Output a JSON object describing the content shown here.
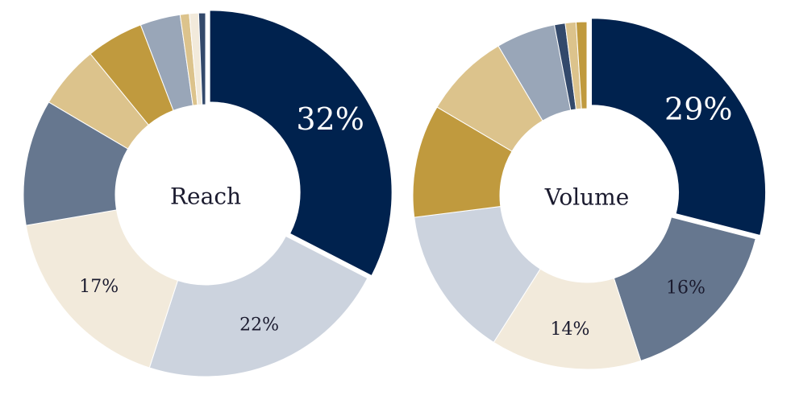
{
  "chart_data": [
    {
      "type": "pie",
      "center_label": "Reach",
      "slices": [
        {
          "value": 32,
          "label": "32%",
          "color": "#00224e",
          "label_color": "#ffffff",
          "exploded": true
        },
        {
          "value": 22,
          "label": "22%",
          "color": "#ccd3de",
          "label_color": "#1a1a2e"
        },
        {
          "value": 17,
          "label": "17%",
          "color": "#f2eadb",
          "label_color": "#1a1a2e"
        },
        {
          "value": 11,
          "label": "",
          "color": "#66778f"
        },
        {
          "value": 5.5,
          "label": "",
          "color": "#dcc38c"
        },
        {
          "value": 5,
          "label": "",
          "color": "#c09a3e"
        },
        {
          "value": 3.5,
          "label": "",
          "color": "#99a6b8"
        },
        {
          "value": 0.8,
          "label": "",
          "color": "#dcc38c"
        },
        {
          "value": 0.8,
          "label": "",
          "color": "#f2eadb"
        },
        {
          "value": 0.6,
          "label": "",
          "color": "#33496b"
        }
      ]
    },
    {
      "type": "pie",
      "center_label": "Volume",
      "slices": [
        {
          "value": 29,
          "label": "29%",
          "color": "#00224e",
          "label_color": "#ffffff",
          "exploded": true
        },
        {
          "value": 16,
          "label": "16%",
          "color": "#66778f",
          "label_color": "#1a1a2e"
        },
        {
          "value": 14,
          "label": "14%",
          "color": "#f2eadb",
          "label_color": "#1a1a2e"
        },
        {
          "value": 14,
          "label": "",
          "color": "#ccd3de"
        },
        {
          "value": 10.5,
          "label": "",
          "color": "#c09a3e"
        },
        {
          "value": 8,
          "label": "",
          "color": "#dcc38c"
        },
        {
          "value": 5.5,
          "label": "",
          "color": "#99a6b8"
        },
        {
          "value": 1,
          "label": "",
          "color": "#33496b"
        },
        {
          "value": 1,
          "label": "",
          "color": "#dcc38c"
        },
        {
          "value": 1,
          "label": "",
          "color": "#c09a3e"
        }
      ]
    }
  ]
}
